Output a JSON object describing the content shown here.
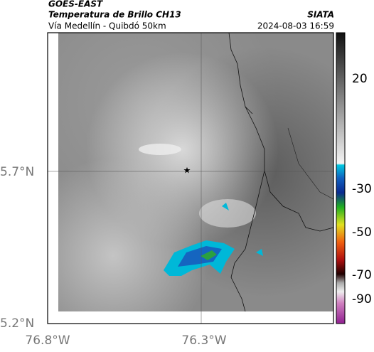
{
  "header": {
    "source": "GOES-EAST",
    "title": "Temperatura de Brillo CH13",
    "subtitle": "Vía Medellín - Quibdó 50km",
    "org": "SIATA",
    "datetime": "2024-08-03 16:59"
  },
  "axes": {
    "lat_labels": [
      "5.7°N",
      "5.2°N"
    ],
    "lon_labels": [
      "76.8°W",
      "76.3°W"
    ]
  },
  "colorbar": {
    "ticks": [
      "20",
      "-30",
      "-50",
      "-70",
      "-90"
    ]
  }
}
